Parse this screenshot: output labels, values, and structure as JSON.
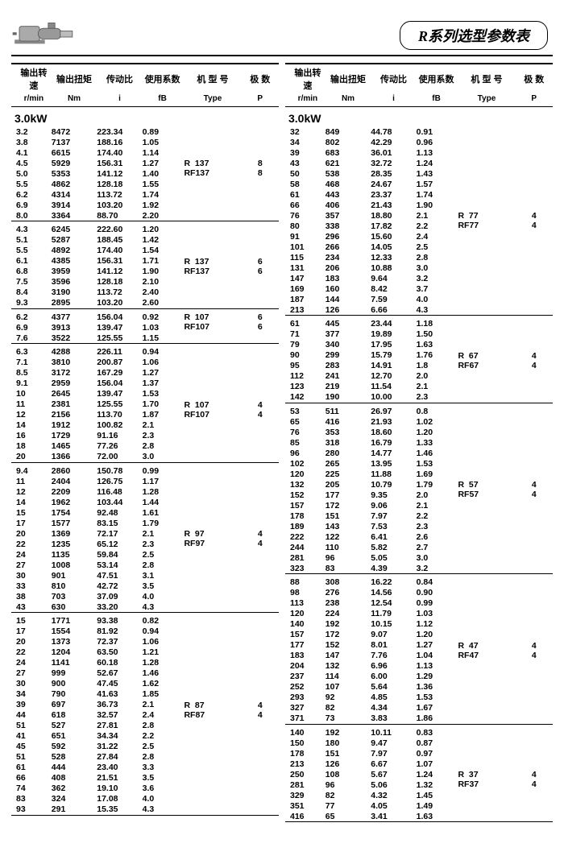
{
  "title": "R系列选型参数表",
  "headers": {
    "h1": "输出转速",
    "h2": "输出扭矩",
    "h3": "传动比",
    "h4": "使用系数",
    "h5": "机 型 号",
    "h6": "极  数",
    "s1": "r/min",
    "s2": "Nm",
    "s3": "i",
    "s4": "fB",
    "s5": "Type",
    "s6": "P"
  },
  "power": "3.0kW",
  "left": [
    {
      "rows": [
        [
          "3.2",
          "8472",
          "223.34",
          "0.89"
        ],
        [
          "3.8",
          "7137",
          "188.16",
          "1.05"
        ],
        [
          "4.1",
          "6615",
          "174.40",
          "1.14"
        ],
        [
          "4.5",
          "5929",
          "156.31",
          "1.27"
        ],
        [
          "5.0",
          "5353",
          "141.12",
          "1.40"
        ],
        [
          "5.5",
          "4862",
          "128.18",
          "1.55"
        ],
        [
          "6.2",
          "4314",
          "113.72",
          "1.74"
        ],
        [
          "6.9",
          "3914",
          "103.20",
          "1.92"
        ],
        [
          "8.0",
          "3364",
          "88.70",
          "2.20"
        ]
      ],
      "types": [
        "R  137",
        "RF137"
      ],
      "p": [
        "8",
        "8"
      ],
      "typeAt": 3
    },
    {
      "rows": [
        [
          "4.3",
          "6245",
          "222.60",
          "1.20"
        ],
        [
          "5.1",
          "5287",
          "188.45",
          "1.42"
        ],
        [
          "5.5",
          "4892",
          "174.40",
          "1.54"
        ],
        [
          "6.1",
          "4385",
          "156.31",
          "1.71"
        ],
        [
          "6.8",
          "3959",
          "141.12",
          "1.90"
        ],
        [
          "7.5",
          "3596",
          "128.18",
          "2.10"
        ],
        [
          "8.4",
          "3190",
          "113.72",
          "2.40"
        ],
        [
          "9.3",
          "2895",
          "103.20",
          "2.60"
        ]
      ],
      "types": [
        "R  137",
        "RF137"
      ],
      "p": [
        "6",
        "6"
      ],
      "typeAt": 3
    },
    {
      "rows": [
        [
          "6.2",
          "4377",
          "156.04",
          "0.92"
        ],
        [
          "6.9",
          "3913",
          "139.47",
          "1.03"
        ],
        [
          "7.6",
          "3522",
          "125.55",
          "1.15"
        ]
      ],
      "types": [
        "R  107",
        "RF107"
      ],
      "p": [
        "6",
        "6"
      ],
      "typeAt": 0
    },
    {
      "rows": [
        [
          "6.3",
          "4288",
          "226.11",
          "0.94"
        ],
        [
          "7.1",
          "3810",
          "200.87",
          "1.06"
        ],
        [
          "8.5",
          "3172",
          "167.29",
          "1.27"
        ],
        [
          "9.1",
          "2959",
          "156.04",
          "1.37"
        ],
        [
          "10",
          "2645",
          "139.47",
          "1.53"
        ],
        [
          "11",
          "2381",
          "125.55",
          "1.70"
        ],
        [
          "12",
          "2156",
          "113.70",
          "1.87"
        ],
        [
          "14",
          "1912",
          "100.82",
          "2.1"
        ],
        [
          "16",
          "1729",
          "91.16",
          "2.3"
        ],
        [
          "18",
          "1465",
          "77.26",
          "2.8"
        ],
        [
          "20",
          "1366",
          "72.00",
          "3.0"
        ]
      ],
      "types": [
        "R  107",
        "RF107"
      ],
      "p": [
        "4",
        "4"
      ],
      "typeAt": 5
    },
    {
      "rows": [
        [
          "9.4",
          "2860",
          "150.78",
          "0.99"
        ],
        [
          "11",
          "2404",
          "126.75",
          "1.17"
        ],
        [
          "12",
          "2209",
          "116.48",
          "1.28"
        ],
        [
          "14",
          "1962",
          "103.44",
          "1.44"
        ],
        [
          "15",
          "1754",
          "92.48",
          "1.61"
        ],
        [
          "17",
          "1577",
          "83.15",
          "1.79"
        ],
        [
          "20",
          "1369",
          "72.17",
          "2.1"
        ],
        [
          "22",
          "1235",
          "65.12",
          "2.3"
        ],
        [
          "24",
          "1135",
          "59.84",
          "2.5"
        ],
        [
          "27",
          "1008",
          "53.14",
          "2.8"
        ],
        [
          "30",
          "901",
          "47.51",
          "3.1"
        ],
        [
          "33",
          "810",
          "42.72",
          "3.5"
        ],
        [
          "38",
          "703",
          "37.09",
          "4.0"
        ],
        [
          "43",
          "630",
          "33.20",
          "4.3"
        ]
      ],
      "types": [
        "R  97",
        "RF97"
      ],
      "p": [
        "4",
        "4"
      ],
      "typeAt": 6
    },
    {
      "rows": [
        [
          "15",
          "1771",
          "93.38",
          "0.82"
        ],
        [
          "17",
          "1554",
          "81.92",
          "0.94"
        ],
        [
          "20",
          "1373",
          "72.37",
          "1.06"
        ],
        [
          "22",
          "1204",
          "63.50",
          "1.21"
        ],
        [
          "24",
          "1141",
          "60.18",
          "1.28"
        ],
        [
          "27",
          "999",
          "52.67",
          "1.46"
        ],
        [
          "30",
          "900",
          "47.45",
          "1.62"
        ],
        [
          "34",
          "790",
          "41.63",
          "1.85"
        ],
        [
          "39",
          "697",
          "36.73",
          "2.1"
        ],
        [
          "44",
          "618",
          "32.57",
          "2.4"
        ],
        [
          "51",
          "527",
          "27.81",
          "2.8"
        ],
        [
          "41",
          "651",
          "34.34",
          "2.2"
        ],
        [
          "45",
          "592",
          "31.22",
          "2.5"
        ],
        [
          "51",
          "528",
          "27.84",
          "2.8"
        ],
        [
          "61",
          "444",
          "23.40",
          "3.3"
        ],
        [
          "66",
          "408",
          "21.51",
          "3.5"
        ],
        [
          "74",
          "362",
          "19.10",
          "3.6"
        ],
        [
          "83",
          "324",
          "17.08",
          "4.0"
        ],
        [
          "93",
          "291",
          "15.35",
          "4.3"
        ]
      ],
      "types": [
        "R  87",
        "RF87"
      ],
      "p": [
        "4",
        "4"
      ],
      "typeAt": 8
    }
  ],
  "right": [
    {
      "rows": [
        [
          "32",
          "849",
          "44.78",
          "0.91"
        ],
        [
          "34",
          "802",
          "42.29",
          "0.96"
        ],
        [
          "39",
          "683",
          "36.01",
          "1.13"
        ],
        [
          "43",
          "621",
          "32.72",
          "1.24"
        ],
        [
          "50",
          "538",
          "28.35",
          "1.43"
        ],
        [
          "58",
          "468",
          "24.67",
          "1.57"
        ],
        [
          "61",
          "443",
          "23.37",
          "1.74"
        ],
        [
          "66",
          "406",
          "21.43",
          "1.90"
        ],
        [
          "76",
          "357",
          "18.80",
          "2.1"
        ],
        [
          "80",
          "338",
          "17.82",
          "2.2"
        ],
        [
          "91",
          "296",
          "15.60",
          "2.4"
        ],
        [
          "101",
          "266",
          "14.05",
          "2.5"
        ],
        [
          "115",
          "234",
          "12.33",
          "2.8"
        ],
        [
          "131",
          "206",
          "10.88",
          "3.0"
        ],
        [
          "147",
          "183",
          "9.64",
          "3.2"
        ],
        [
          "169",
          "160",
          "8.42",
          "3.7"
        ],
        [
          "187",
          "144",
          "7.59",
          "4.0"
        ],
        [
          "213",
          "126",
          "6.66",
          "4.3"
        ]
      ],
      "types": [
        "R  77",
        "RF77"
      ],
      "p": [
        "4",
        "4"
      ],
      "typeAt": 8
    },
    {
      "rows": [
        [
          "61",
          "445",
          "23.44",
          "1.18"
        ],
        [
          "71",
          "377",
          "19.89",
          "1.50"
        ],
        [
          "79",
          "340",
          "17.95",
          "1.63"
        ],
        [
          "90",
          "299",
          "15.79",
          "1.76"
        ],
        [
          "95",
          "283",
          "14.91",
          "1.8"
        ],
        [
          "112",
          "241",
          "12.70",
          "2.0"
        ],
        [
          "123",
          "219",
          "11.54",
          "2.1"
        ],
        [
          "142",
          "190",
          "10.00",
          "2.3"
        ]
      ],
      "types": [
        "R  67",
        "RF67"
      ],
      "p": [
        "4",
        "4"
      ],
      "typeAt": 3
    },
    {
      "rows": [
        [
          "53",
          "511",
          "26.97",
          "0.8"
        ],
        [
          "65",
          "416",
          "21.93",
          "1.02"
        ],
        [
          "76",
          "353",
          "18.60",
          "1.20"
        ],
        [
          "85",
          "318",
          "16.79",
          "1.33"
        ],
        [
          "96",
          "280",
          "14.77",
          "1.46"
        ],
        [
          "102",
          "265",
          "13.95",
          "1.53"
        ],
        [
          "120",
          "225",
          "11.88",
          "1.69"
        ],
        [
          "132",
          "205",
          "10.79",
          "1.79"
        ],
        [
          "152",
          "177",
          "9.35",
          "2.0"
        ],
        [
          "157",
          "172",
          "9.06",
          "2.1"
        ],
        [
          "178",
          "151",
          "7.97",
          "2.2"
        ],
        [
          "189",
          "143",
          "7.53",
          "2.3"
        ],
        [
          "222",
          "122",
          "6.41",
          "2.6"
        ],
        [
          "244",
          "110",
          "5.82",
          "2.7"
        ],
        [
          "281",
          "96",
          "5.05",
          "3.0"
        ],
        [
          "323",
          "83",
          "4.39",
          "3.2"
        ]
      ],
      "types": [
        "R  57",
        "RF57"
      ],
      "p": [
        "4",
        "4"
      ],
      "typeAt": 7
    },
    {
      "rows": [
        [
          "88",
          "308",
          "16.22",
          "0.84"
        ],
        [
          "98",
          "276",
          "14.56",
          "0.90"
        ],
        [
          "113",
          "238",
          "12.54",
          "0.99"
        ],
        [
          "120",
          "224",
          "11.79",
          "1.03"
        ],
        [
          "140",
          "192",
          "10.15",
          "1.12"
        ],
        [
          "157",
          "172",
          "9.07",
          "1.20"
        ],
        [
          "177",
          "152",
          "8.01",
          "1.27"
        ],
        [
          "183",
          "147",
          "7.76",
          "1.04"
        ],
        [
          "204",
          "132",
          "6.96",
          "1.13"
        ],
        [
          "237",
          "114",
          "6.00",
          "1.29"
        ],
        [
          "252",
          "107",
          "5.64",
          "1.36"
        ],
        [
          "293",
          "92",
          "4.85",
          "1.53"
        ],
        [
          "327",
          "82",
          "4.34",
          "1.67"
        ],
        [
          "371",
          "73",
          "3.83",
          "1.86"
        ]
      ],
      "types": [
        "R  47",
        "RF47"
      ],
      "p": [
        "4",
        "4"
      ],
      "typeAt": 6
    },
    {
      "rows": [
        [
          "140",
          "192",
          "10.11",
          "0.83"
        ],
        [
          "150",
          "180",
          "9.47",
          "0.87"
        ],
        [
          "178",
          "151",
          "7.97",
          "0.97"
        ],
        [
          "213",
          "126",
          "6.67",
          "1.07"
        ],
        [
          "250",
          "108",
          "5.67",
          "1.24"
        ],
        [
          "281",
          "96",
          "5.06",
          "1.32"
        ],
        [
          "329",
          "82",
          "4.32",
          "1.45"
        ],
        [
          "351",
          "77",
          "4.05",
          "1.49"
        ],
        [
          "416",
          "65",
          "3.41",
          "1.63"
        ]
      ],
      "types": [
        "R  37",
        "RF37"
      ],
      "p": [
        "4",
        "4"
      ],
      "typeAt": 4
    }
  ]
}
